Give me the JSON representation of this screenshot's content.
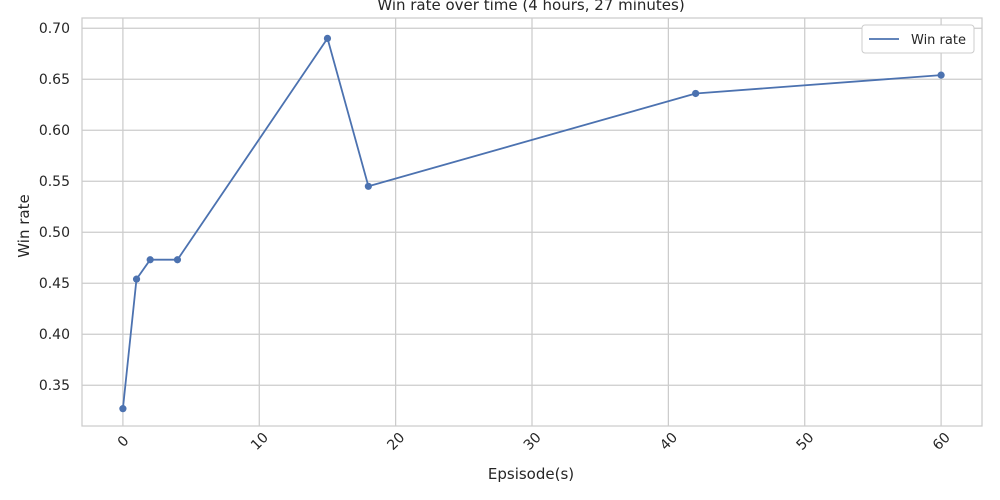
{
  "chart_data": {
    "type": "line",
    "title": "Win rate over time (4 hours, 27 minutes)",
    "xlabel": "Epsisode(s)",
    "ylabel": "Win rate",
    "xlim": [
      -3,
      63
    ],
    "ylim": [
      0.31,
      0.71
    ],
    "xticks": [
      0,
      10,
      20,
      30,
      40,
      50,
      60
    ],
    "yticks": [
      0.35,
      0.4,
      0.45,
      0.5,
      0.55,
      0.6,
      0.65,
      0.7
    ],
    "xtick_labels": [
      "0",
      "10",
      "20",
      "30",
      "40",
      "50",
      "60"
    ],
    "ytick_labels": [
      "0.35",
      "0.40",
      "0.45",
      "0.50",
      "0.55",
      "0.60",
      "0.65",
      "0.70"
    ],
    "grid": true,
    "legend_position": "top-right",
    "series": [
      {
        "name": "Win rate",
        "color": "#4c72b0",
        "x": [
          0,
          1,
          2,
          4,
          15,
          18,
          42,
          60
        ],
        "y": [
          0.327,
          0.454,
          0.473,
          0.473,
          0.69,
          0.545,
          0.636,
          0.654
        ]
      }
    ]
  }
}
